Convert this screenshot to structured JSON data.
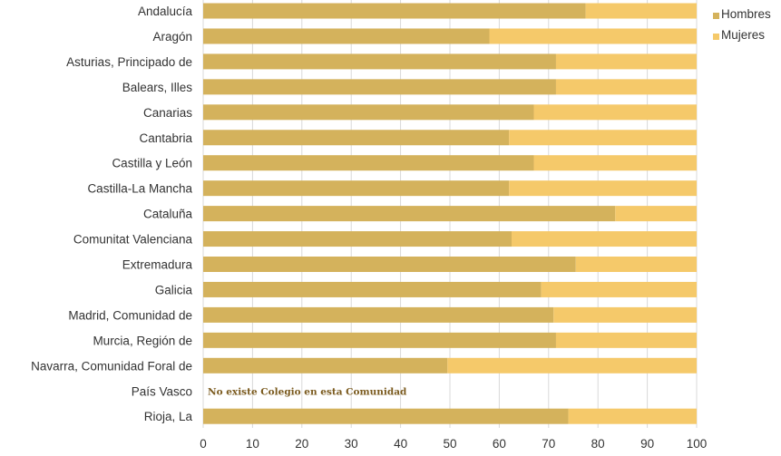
{
  "chart_data": {
    "type": "bar",
    "orientation": "horizontal",
    "stacked": true,
    "categories": [
      "Andalucía",
      "Aragón",
      "Asturias, Principado de",
      "Balears, Illes",
      "Canarias",
      "Cantabria",
      "Castilla y León",
      "Castilla-La Mancha",
      "Cataluña",
      "Comunitat Valenciana",
      "Extremadura",
      "Galicia",
      "Madrid, Comunidad de",
      "Murcia, Región de",
      "Navarra, Comunidad Foral de",
      "País Vasco",
      "Rioja, La"
    ],
    "series": [
      {
        "name": "Hombres",
        "color": "#d4b25c",
        "values": [
          77.5,
          58,
          71.5,
          71.5,
          67,
          62,
          67,
          62,
          83.5,
          62.5,
          75.5,
          68.5,
          71,
          71.5,
          49.5,
          null,
          74
        ]
      },
      {
        "name": "Mujeres",
        "color": "#f5c96a",
        "values": [
          22.5,
          42,
          28.5,
          28.5,
          33,
          38,
          33,
          38,
          16.5,
          37.5,
          24.5,
          31.5,
          29,
          28.5,
          50.5,
          null,
          26
        ]
      }
    ],
    "xlim": [
      0,
      100
    ],
    "xticks": [
      0,
      10,
      20,
      30,
      40,
      50,
      60,
      70,
      80,
      90,
      100
    ],
    "grid": "vertical",
    "legend": "top-right",
    "annotations": [
      {
        "category": "País Vasco",
        "text": "No existe Colegio en esta Comunidad"
      }
    ]
  }
}
